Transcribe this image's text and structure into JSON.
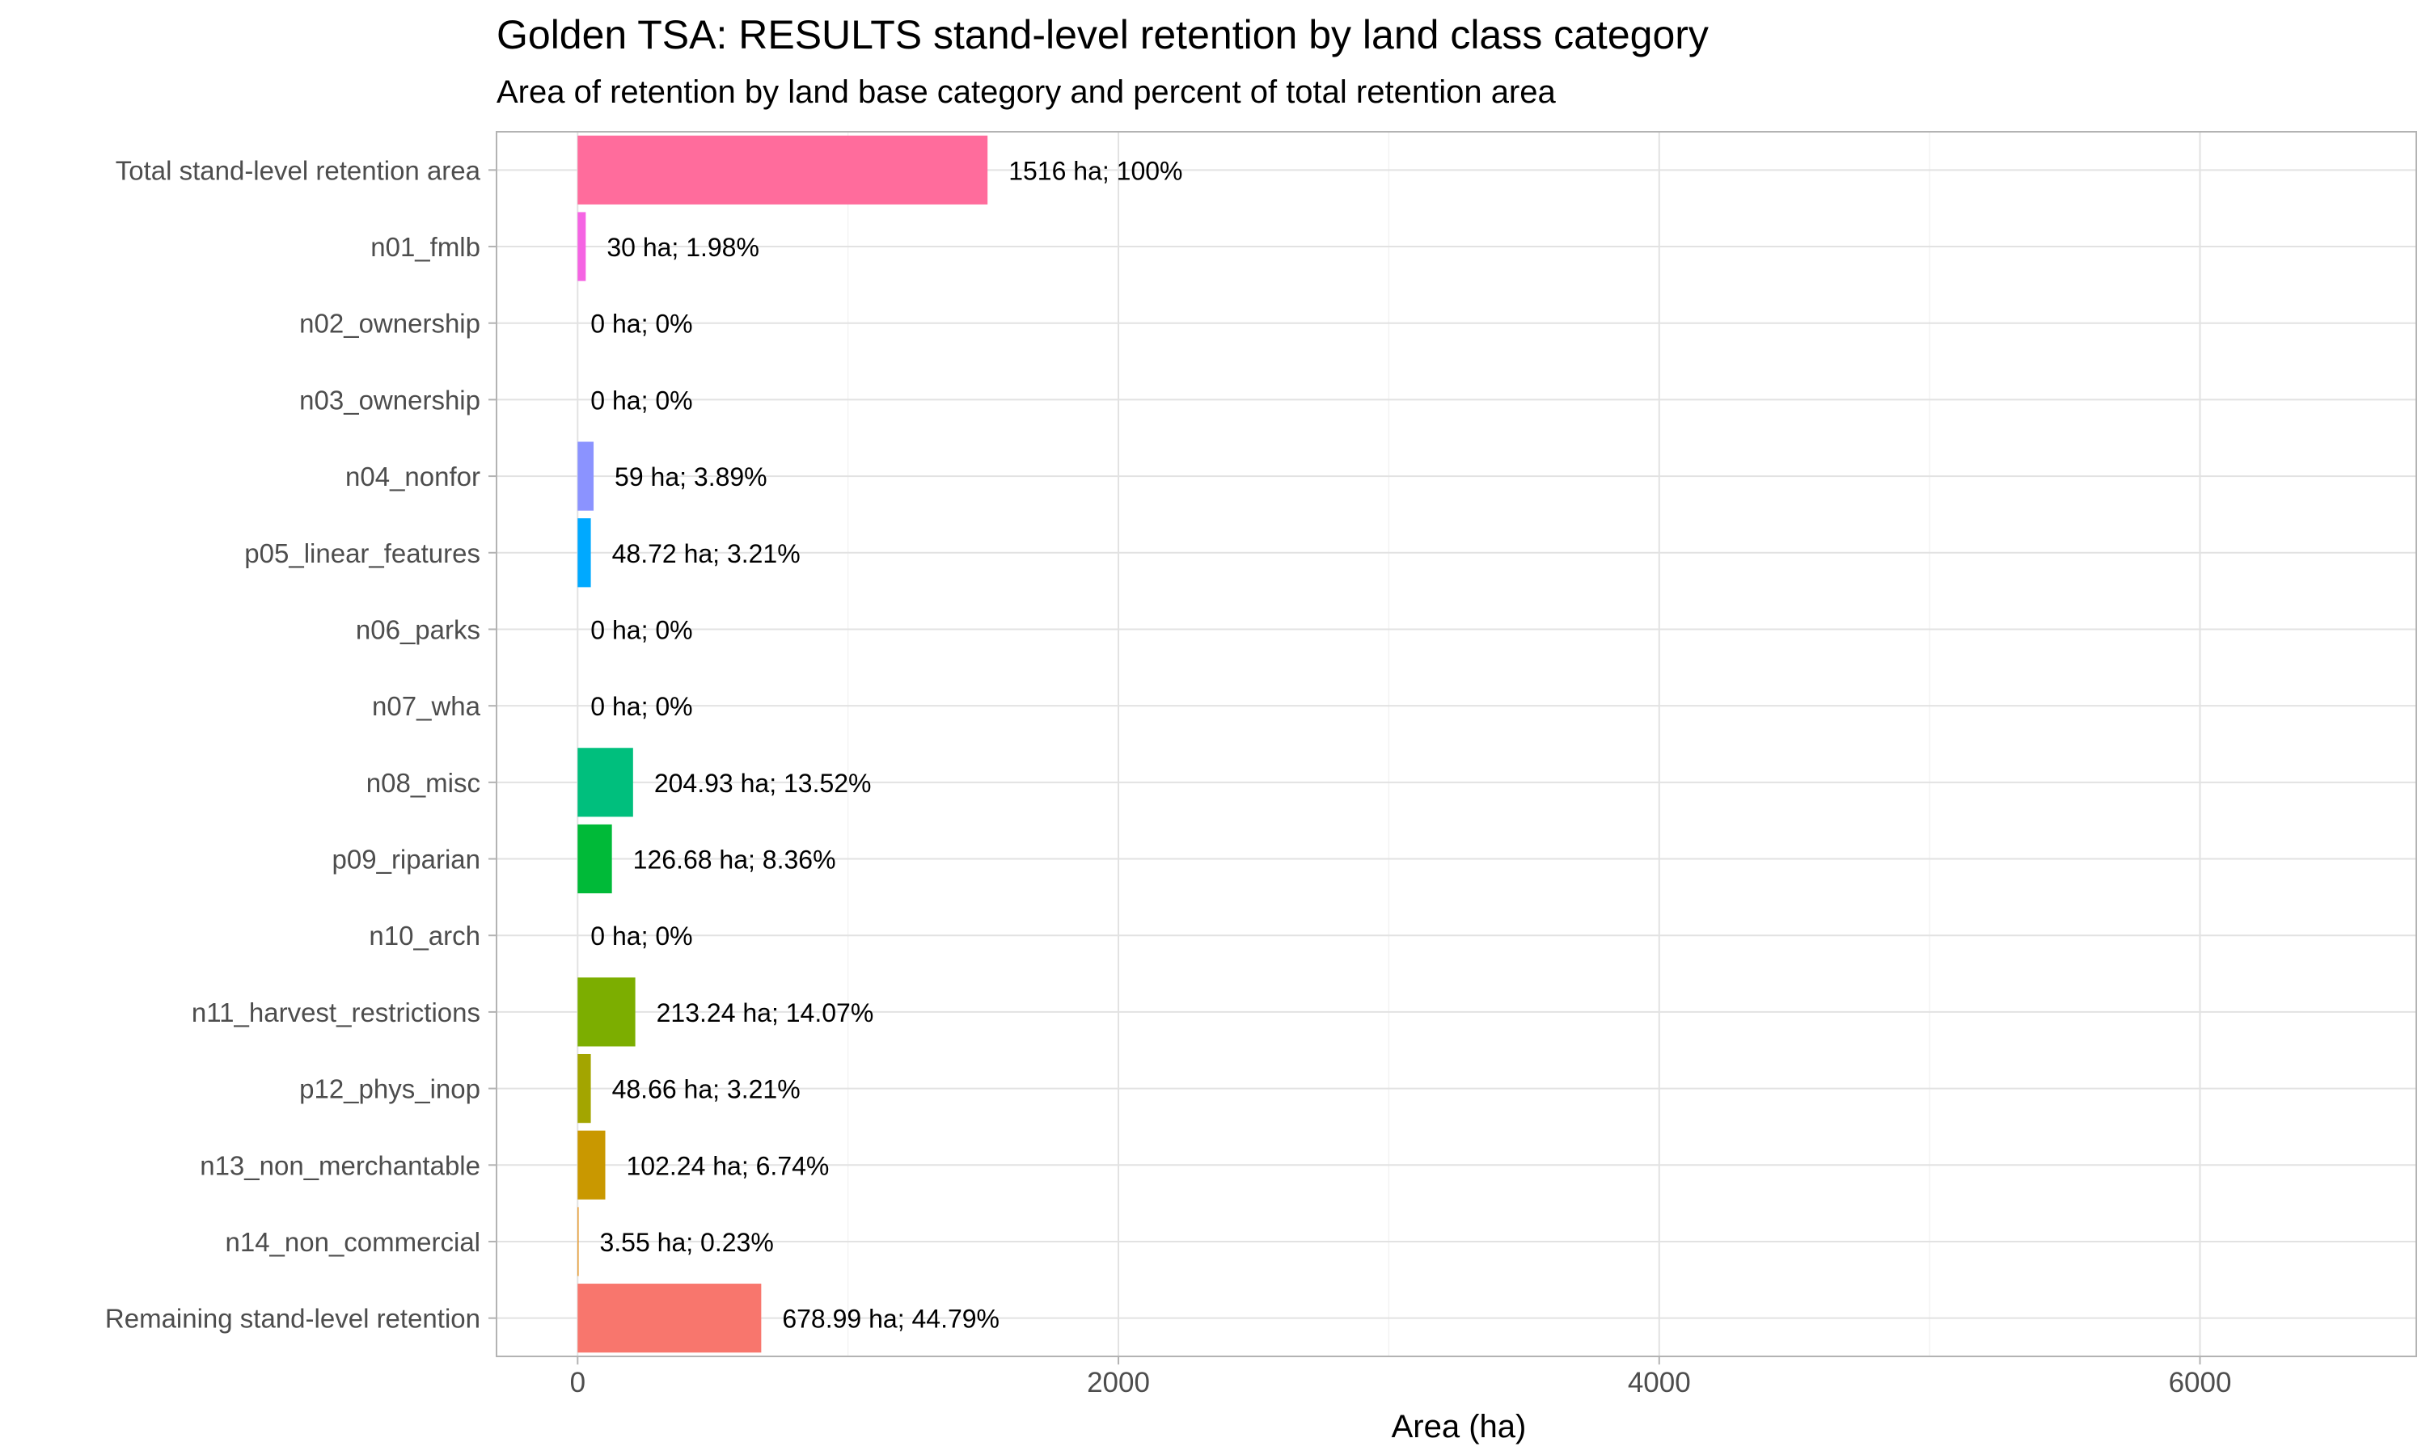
{
  "chart_data": {
    "type": "bar",
    "orientation": "horizontal",
    "title": "Golden TSA: RESULTS stand-level retention by land class category",
    "subtitle": "Area of retention by land base category and percent of total retention area",
    "xlabel": "Area (ha)",
    "ylabel": "",
    "xlim": [
      -300,
      6800
    ],
    "x_ticks": [
      0,
      2000,
      4000,
      6000
    ],
    "grid": true,
    "legend": "none",
    "categories": [
      "Total stand-level retention area",
      "n01_fmlb",
      "n02_ownership",
      "n03_ownership",
      "n04_nonfor",
      "p05_linear_features",
      "n06_parks",
      "n07_wha",
      "n08_misc",
      "p09_riparian",
      "n10_arch",
      "n11_harvest_restrictions",
      "p12_phys_inop",
      "n13_non_merchantable",
      "n14_non_commercial",
      "Remaining stand-level retention"
    ],
    "values": [
      1516,
      30,
      0,
      0,
      59,
      48.72,
      0,
      0,
      204.93,
      126.68,
      0,
      213.24,
      48.66,
      102.24,
      3.55,
      678.99
    ],
    "data_labels": [
      "1516 ha; 100%",
      "30 ha; 1.98%",
      "0 ha; 0%",
      "0 ha; 0%",
      "59 ha; 3.89%",
      "48.72 ha; 3.21%",
      "0 ha; 0%",
      "0 ha; 0%",
      "204.93 ha; 13.52%",
      "126.68 ha; 8.36%",
      "0 ha; 0%",
      "213.24 ha; 14.07%",
      "48.66 ha; 3.21%",
      "102.24 ha; 6.74%",
      "3.55 ha; 0.23%",
      "678.99 ha; 44.79%"
    ],
    "colors": [
      "#FF6C9C",
      "#F564E3",
      "#E76BF3",
      "#C77CFF",
      "#8B93FF",
      "#00A9FF",
      "#00BCD8",
      "#00C1AA",
      "#00BF7D",
      "#00BA38",
      "#39B600",
      "#7CAE00",
      "#A3A500",
      "#C99800",
      "#E58700",
      "#F8766D"
    ]
  }
}
